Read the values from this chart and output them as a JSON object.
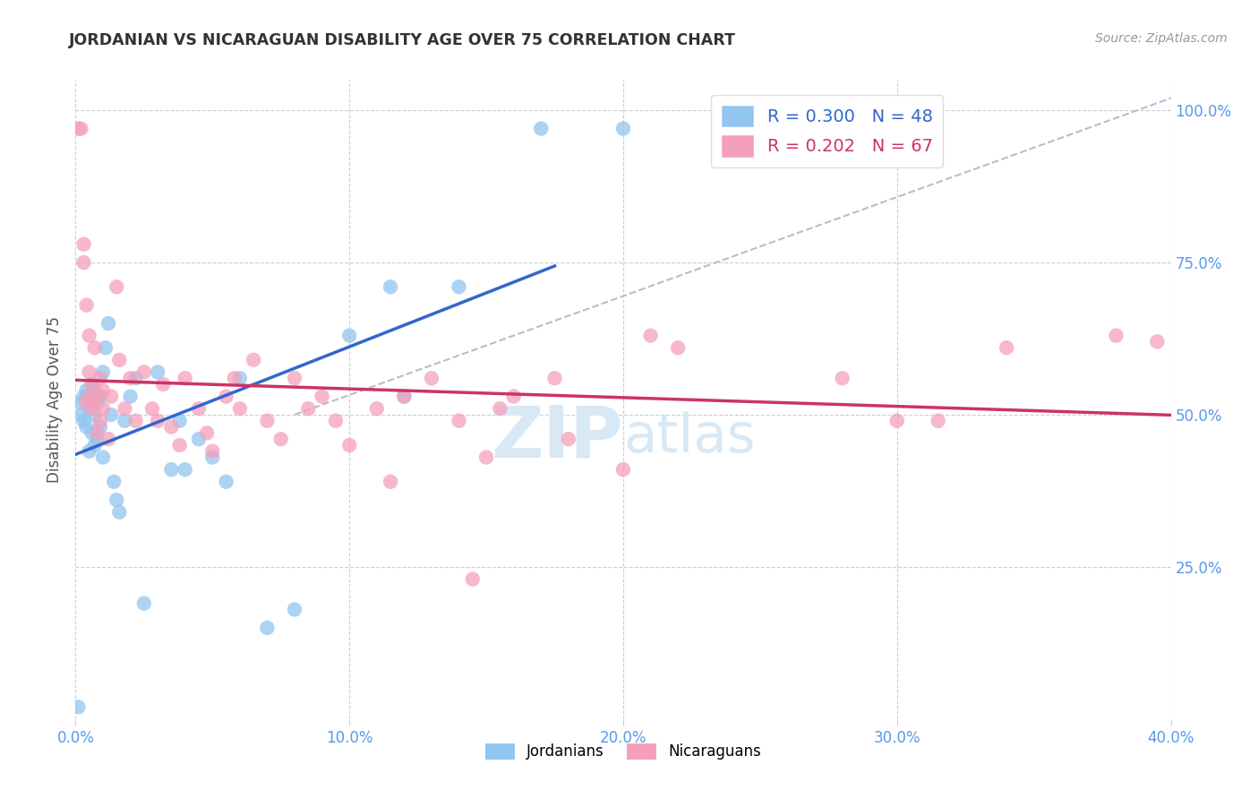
{
  "title": "JORDANIAN VS NICARAGUAN DISABILITY AGE OVER 75 CORRELATION CHART",
  "source": "Source: ZipAtlas.com",
  "ylabel": "Disability Age Over 75",
  "xlabel_ticks": [
    "0.0%",
    "",
    "",
    "",
    "",
    "10.0%",
    "",
    "",
    "",
    "",
    "20.0%",
    "",
    "",
    "",
    "",
    "30.0%",
    "",
    "",
    "",
    "",
    "40.0%"
  ],
  "xlabel_vals": [
    0.0,
    0.02,
    0.04,
    0.06,
    0.08,
    0.1,
    0.12,
    0.14,
    0.16,
    0.18,
    0.2,
    0.22,
    0.24,
    0.26,
    0.28,
    0.3,
    0.32,
    0.34,
    0.36,
    0.38,
    0.4
  ],
  "xlabel_major_ticks": [
    "0.0%",
    "10.0%",
    "20.0%",
    "30.0%",
    "40.0%"
  ],
  "xlabel_major_vals": [
    0.0,
    0.1,
    0.2,
    0.3,
    0.4
  ],
  "ylabel_ticks": [
    "100.0%",
    "75.0%",
    "50.0%",
    "25.0%"
  ],
  "ylabel_vals": [
    1.0,
    0.75,
    0.5,
    0.25
  ],
  "xlim": [
    0.0,
    0.4
  ],
  "ylim": [
    0.0,
    1.05
  ],
  "jordan_R": 0.3,
  "jordan_N": 48,
  "nicara_R": 0.202,
  "nicara_N": 67,
  "jordan_color": "#92C5F0",
  "nicara_color": "#F5A0BA",
  "jordan_line_color": "#3366CC",
  "nicara_line_color": "#CC3366",
  "dashed_line_color": "#BBBBCC",
  "watermark_color": "#D8E8F5",
  "jordan_x": [
    0.001,
    0.002,
    0.002,
    0.003,
    0.003,
    0.004,
    0.004,
    0.005,
    0.005,
    0.005,
    0.006,
    0.006,
    0.006,
    0.007,
    0.007,
    0.007,
    0.008,
    0.008,
    0.009,
    0.009,
    0.01,
    0.01,
    0.011,
    0.012,
    0.013,
    0.014,
    0.015,
    0.016,
    0.018,
    0.02,
    0.022,
    0.025,
    0.03,
    0.035,
    0.038,
    0.04,
    0.045,
    0.05,
    0.055,
    0.06,
    0.07,
    0.08,
    0.1,
    0.115,
    0.12,
    0.14,
    0.17,
    0.2
  ],
  "jordan_y": [
    0.02,
    0.5,
    0.52,
    0.49,
    0.53,
    0.48,
    0.54,
    0.44,
    0.51,
    0.53,
    0.47,
    0.52,
    0.55,
    0.45,
    0.5,
    0.54,
    0.46,
    0.52,
    0.48,
    0.53,
    0.43,
    0.57,
    0.61,
    0.65,
    0.5,
    0.39,
    0.36,
    0.34,
    0.49,
    0.53,
    0.56,
    0.19,
    0.57,
    0.41,
    0.49,
    0.41,
    0.46,
    0.43,
    0.39,
    0.56,
    0.15,
    0.18,
    0.63,
    0.71,
    0.53,
    0.71,
    0.97,
    0.97
  ],
  "nicara_x": [
    0.001,
    0.002,
    0.003,
    0.003,
    0.004,
    0.004,
    0.005,
    0.005,
    0.005,
    0.006,
    0.006,
    0.007,
    0.007,
    0.008,
    0.008,
    0.009,
    0.009,
    0.01,
    0.01,
    0.012,
    0.013,
    0.015,
    0.016,
    0.018,
    0.02,
    0.022,
    0.025,
    0.028,
    0.03,
    0.032,
    0.035,
    0.038,
    0.04,
    0.045,
    0.048,
    0.05,
    0.055,
    0.058,
    0.06,
    0.065,
    0.07,
    0.075,
    0.08,
    0.085,
    0.09,
    0.095,
    0.1,
    0.11,
    0.115,
    0.12,
    0.13,
    0.14,
    0.145,
    0.15,
    0.155,
    0.16,
    0.175,
    0.18,
    0.2,
    0.21,
    0.22,
    0.28,
    0.3,
    0.315,
    0.34,
    0.38,
    0.395
  ],
  "nicara_y": [
    0.97,
    0.97,
    0.78,
    0.75,
    0.68,
    0.52,
    0.53,
    0.57,
    0.63,
    0.51,
    0.55,
    0.52,
    0.61,
    0.47,
    0.53,
    0.49,
    0.56,
    0.51,
    0.54,
    0.46,
    0.53,
    0.71,
    0.59,
    0.51,
    0.56,
    0.49,
    0.57,
    0.51,
    0.49,
    0.55,
    0.48,
    0.45,
    0.56,
    0.51,
    0.47,
    0.44,
    0.53,
    0.56,
    0.51,
    0.59,
    0.49,
    0.46,
    0.56,
    0.51,
    0.53,
    0.49,
    0.45,
    0.51,
    0.39,
    0.53,
    0.56,
    0.49,
    0.23,
    0.43,
    0.51,
    0.53,
    0.56,
    0.46,
    0.41,
    0.63,
    0.61,
    0.56,
    0.49,
    0.49,
    0.61,
    0.63,
    0.62
  ]
}
